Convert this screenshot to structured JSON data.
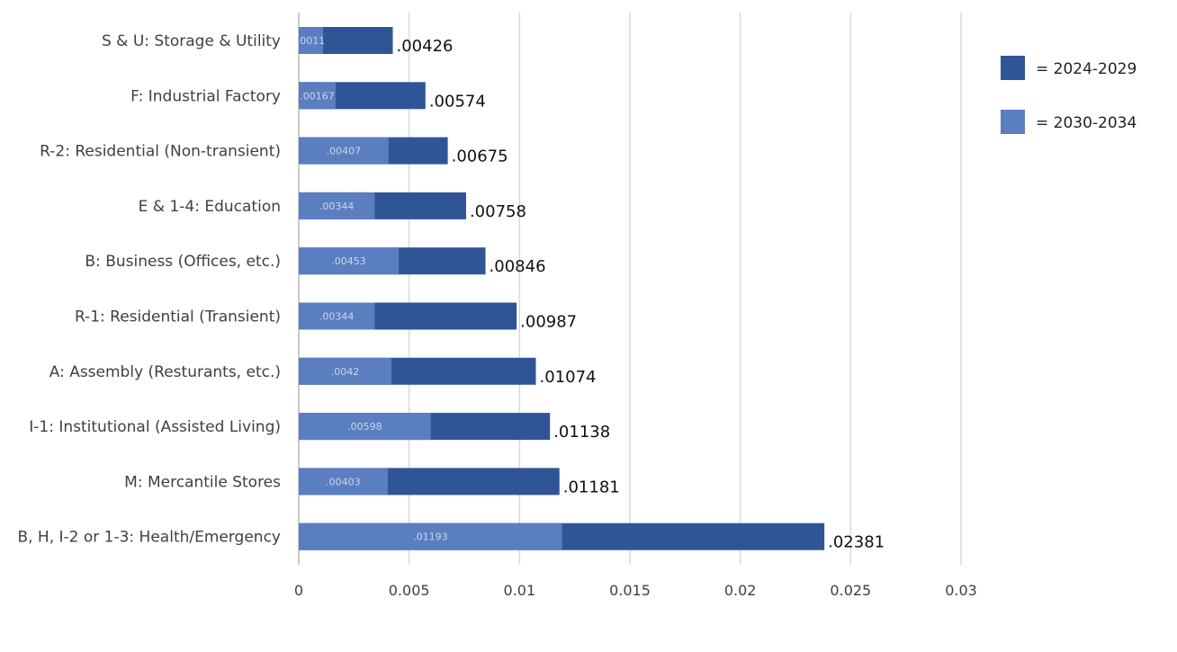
{
  "chart_data": {
    "type": "bar",
    "orientation": "horizontal",
    "stacking": "overlay",
    "title": "",
    "xlabel": "",
    "ylabel": "",
    "xlim": [
      0,
      0.03
    ],
    "xticks": [
      0,
      0.005,
      0.01,
      0.015,
      0.02,
      0.025,
      0.03
    ],
    "xtick_labels": [
      "0",
      "0.005",
      "0.01",
      "0.015",
      "0.02",
      "0.025",
      "0.03"
    ],
    "grid": "vertical",
    "legend_position": "top-right",
    "categories": [
      "S & U: Storage & Utility",
      "F: Industrial Factory",
      "R-2: Residential (Non-transient)",
      "E & 1-4: Education",
      "B: Business (Offices, etc.)",
      "R-1: Residential (Transient)",
      "A: Assembly (Resturants, etc.)",
      "I-1: Institutional (Assisted Living)",
      "M: Mercantile Stores",
      "B, H, I-2 or 1-3: Health/Emergency"
    ],
    "series": [
      {
        "name": "= 2024-2029",
        "color": "#2f5597",
        "values": [
          0.00426,
          0.00574,
          0.00675,
          0.00758,
          0.00846,
          0.00987,
          0.01074,
          0.01138,
          0.01181,
          0.02381
        ],
        "labels": [
          ".00426",
          ".00574",
          ".00675",
          ".00758",
          ".00846",
          ".00987",
          ".01074",
          ".01138",
          ".01181",
          ".02381"
        ]
      },
      {
        "name": "= 2030-2034",
        "color": "#5a7ebf",
        "values": [
          0.0011,
          0.00167,
          0.00407,
          0.00344,
          0.00453,
          0.00344,
          0.0042,
          0.00598,
          0.00403,
          0.01193
        ],
        "labels": [
          ".0011",
          ".00167",
          ".00407",
          ".00344",
          ".00453",
          ".00344",
          ".0042",
          ".00598",
          ".00403",
          ".01193"
        ]
      }
    ]
  }
}
